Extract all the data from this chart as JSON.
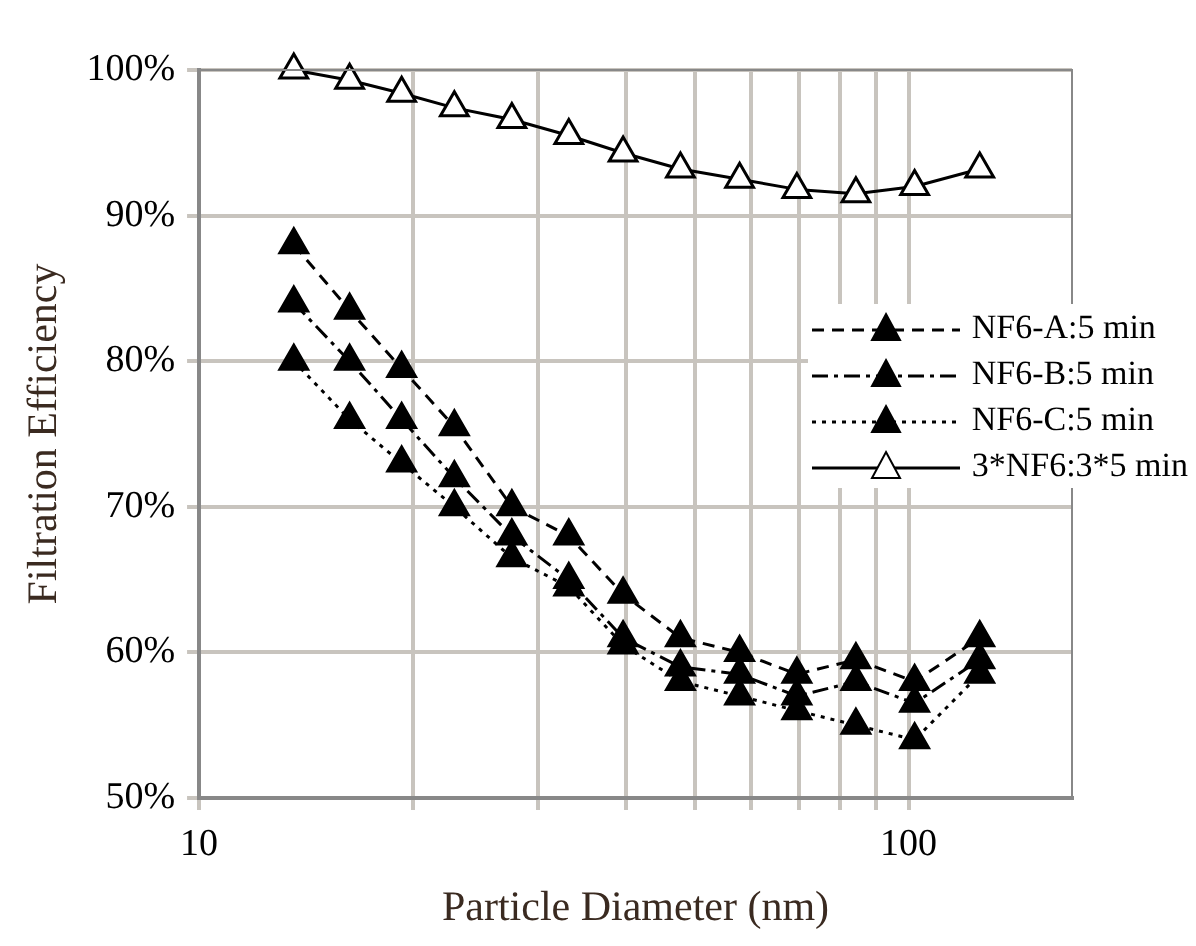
{
  "chart_data": {
    "type": "line",
    "xlabel": "Particle Diameter (nm)",
    "ylabel": "Filtration Efficiency",
    "log": "x",
    "grid": true,
    "legend": "right",
    "marker": "triangle",
    "xlim": [
      10,
      170
    ],
    "xticks": [
      10,
      {
        "value": 20,
        "label": null
      },
      {
        "value": 30,
        "label": null
      },
      {
        "value": 40,
        "label": null
      },
      {
        "value": 50,
        "label": null
      },
      {
        "value": 60,
        "label": null
      },
      {
        "value": 70,
        "label": null
      },
      {
        "value": 80,
        "label": null
      },
      {
        "value": 90,
        "label": null
      },
      100
    ],
    "ylim": [
      50,
      100
    ],
    "yticks": [
      {
        "value": 50,
        "label": "50%"
      },
      {
        "value": 60,
        "label": "60%"
      },
      {
        "value": 70,
        "label": "70%"
      },
      {
        "value": 80,
        "label": "80%"
      },
      {
        "value": 90,
        "label": "90%"
      },
      {
        "value": 100,
        "label": "100%"
      }
    ],
    "x": [
      13.6,
      16.3,
      19.3,
      22.9,
      27.6,
      33.2,
      39.6,
      47.7,
      57.8,
      69.6,
      84.3,
      102,
      126
    ],
    "series": [
      {
        "name": "NF6-A:5 min",
        "color": "#000000",
        "line_style": "dashed",
        "values": [
          88,
          83.5,
          79.5,
          75.5,
          70,
          68,
          64,
          61,
          60,
          58.5,
          59.5,
          58,
          61
        ]
      },
      {
        "name": "NF6-B:5 min",
        "color": "#000000",
        "line_style": "dashdot",
        "values": [
          84,
          80,
          76,
          72,
          68,
          65,
          61,
          59,
          58.5,
          57,
          58,
          56.5,
          59.5
        ]
      },
      {
        "name": "NF6-C:5 min",
        "color": "#000000",
        "line_style": "dotted",
        "values": [
          80,
          76,
          73,
          70,
          66.5,
          64.5,
          60.5,
          58,
          57,
          56,
          55,
          54,
          58.5
        ]
      },
      {
        "name": "3*NF6:3*5 min",
        "color": "#000000",
        "line_style": "solid",
        "values": [
          100,
          99.3,
          98.4,
          97.4,
          96.6,
          95.5,
          94.3,
          93.2,
          92.5,
          91.8,
          91.5,
          92,
          93.2
        ]
      }
    ]
  }
}
